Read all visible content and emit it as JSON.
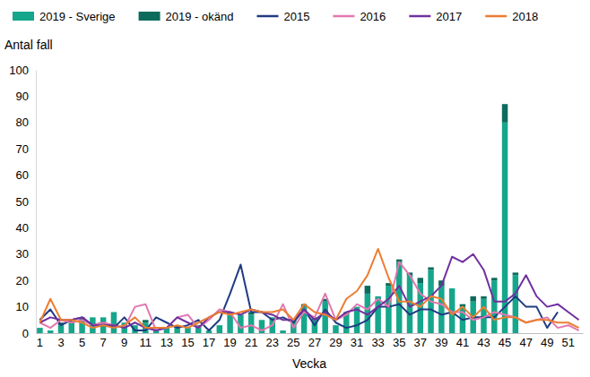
{
  "chart_data": {
    "type": "bar",
    "stacked": true,
    "legend": "top",
    "grid": false,
    "x_label": "Vecka",
    "y_label": "Antal fall",
    "categories": [
      1,
      null,
      3,
      null,
      5,
      null,
      7,
      null,
      9,
      null,
      11,
      null,
      13,
      null,
      15,
      null,
      17,
      null,
      19,
      null,
      21,
      null,
      23,
      null,
      25,
      null,
      27,
      null,
      29,
      null,
      31,
      null,
      33,
      null,
      35,
      null,
      37,
      null,
      39,
      null,
      41,
      null,
      43,
      null,
      45,
      null,
      47,
      null,
      49,
      null,
      51,
      null
    ],
    "ylim": [
      0,
      100
    ],
    "yticks": [
      0,
      10,
      20,
      30,
      40,
      50,
      60,
      70,
      80,
      90,
      100
    ],
    "series": [
      {
        "name": "2019 - Sverige",
        "type": "bar",
        "color": "#16a68b",
        "values": [
          2,
          1,
          3,
          5,
          5,
          6,
          6,
          8,
          4,
          3,
          4,
          1,
          2,
          2,
          2,
          2,
          1,
          3,
          7,
          7,
          7,
          5,
          6,
          1,
          5,
          10,
          5,
          12,
          3,
          7,
          10,
          15,
          14,
          18,
          27,
          22,
          19,
          24,
          18,
          17,
          10,
          12,
          13,
          20,
          80,
          22,
          null,
          null,
          null,
          null,
          null,
          null
        ]
      },
      {
        "name": "2019 - okänd",
        "type": "bar",
        "color": "#0d6b5c",
        "values": [
          0,
          0,
          1,
          0,
          1,
          0,
          0,
          0,
          0,
          0,
          1,
          0,
          0,
          1,
          0,
          1,
          0,
          0,
          1,
          0,
          1,
          0,
          0,
          0,
          0,
          1,
          1,
          1,
          0,
          1,
          0,
          3,
          0,
          1,
          1,
          1,
          2,
          1,
          2,
          0,
          1,
          2,
          1,
          1,
          7,
          1,
          null,
          null,
          null,
          null,
          null,
          null
        ]
      },
      {
        "name": "2015",
        "type": "line",
        "color": "#1f3b82",
        "values": [
          5,
          9,
          3,
          5,
          6,
          3,
          4,
          2,
          6,
          1,
          1,
          6,
          4,
          2,
          3,
          5,
          1,
          5,
          15,
          26,
          8,
          8,
          5,
          6,
          4,
          9,
          3,
          9,
          4,
          2,
          3,
          5,
          10,
          10,
          11,
          7,
          9,
          9,
          7,
          8,
          5,
          6,
          6,
          6,
          10,
          14,
          10,
          10,
          2,
          8,
          null,
          null
        ]
      },
      {
        "name": "2016",
        "type": "line",
        "color": "#e377b0",
        "values": [
          4,
          2,
          5,
          4,
          5,
          3,
          4,
          3,
          2,
          10,
          11,
          1,
          2,
          6,
          7,
          2,
          5,
          9,
          8,
          2,
          3,
          1,
          3,
          11,
          2,
          8,
          6,
          15,
          5,
          7,
          11,
          9,
          13,
          10,
          27,
          22,
          15,
          12,
          11,
          8,
          8,
          5,
          6,
          8,
          7,
          6,
          4,
          5,
          6,
          2,
          3,
          1
        ]
      },
      {
        "name": "2017",
        "type": "line",
        "color": "#7030a0",
        "values": [
          4,
          6,
          5,
          5,
          6,
          3,
          3,
          3,
          2,
          4,
          2,
          1,
          2,
          6,
          4,
          2,
          6,
          8,
          8,
          7,
          9,
          8,
          7,
          5,
          5,
          9,
          5,
          8,
          5,
          8,
          9,
          7,
          10,
          13,
          18,
          10,
          12,
          14,
          18,
          29,
          27,
          30,
          24,
          12,
          12,
          15,
          22,
          14,
          10,
          11,
          8,
          5
        ]
      },
      {
        "name": "2018",
        "type": "line",
        "color": "#ed7d31",
        "values": [
          4,
          13,
          5,
          5,
          4,
          2,
          3,
          2,
          3,
          6,
          2,
          2,
          2,
          3,
          2,
          4,
          6,
          8,
          7,
          8,
          9,
          8,
          8,
          9,
          5,
          11,
          8,
          7,
          5,
          13,
          16,
          22,
          32,
          21,
          12,
          12,
          10,
          14,
          13,
          7,
          10,
          6,
          10,
          5,
          6,
          6,
          4,
          5,
          5,
          4,
          4,
          2
        ]
      }
    ]
  }
}
